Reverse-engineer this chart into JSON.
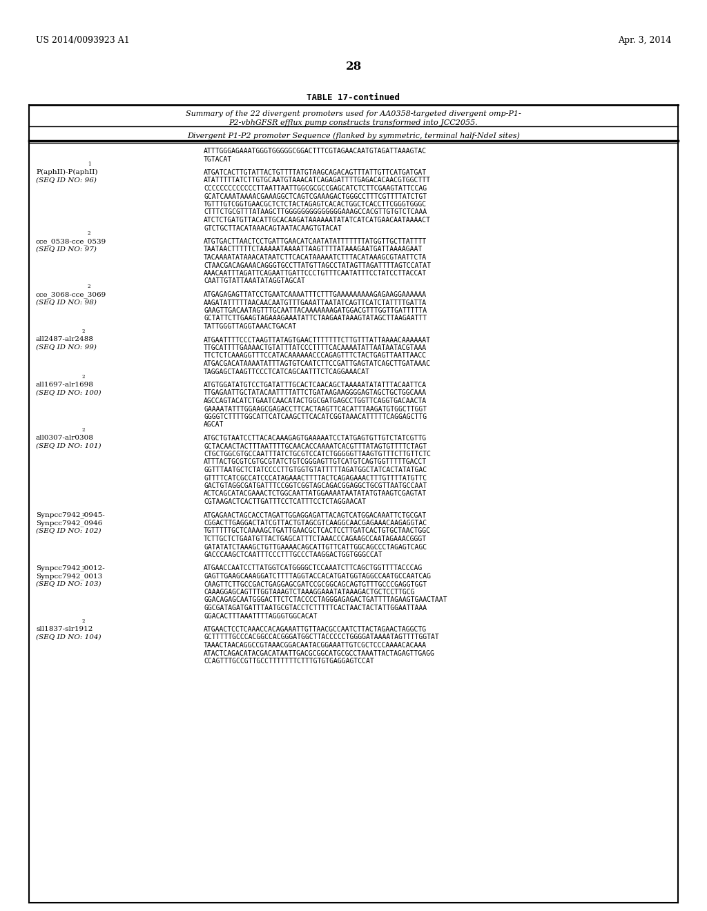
{
  "background_color": "#ffffff",
  "header_left": "US 2014/0093923 A1",
  "header_right": "Apr. 3, 2014",
  "page_number": "28",
  "table_title": "TABLE 17-continued",
  "table_caption_line1": "Summary of the 22 divergent promoters used for AA0358-targeted divergent omp-P1-",
  "table_caption_line2": "P2-vbhGFSR efflux pump constructs transformed into JCC2055.",
  "col_header": "Divergent P1-P2 promoter Sequence (flanked by symmetric, terminal half-NdeI sites)",
  "entry0_seq": [
    "ATTTGGGAGAAATGGGTGGGGGCGGACTTTCGTAGAACAATGTAGATTAAAGTAC",
    "TGTACAT"
  ],
  "entries": [
    {
      "label_line1": "P(aphII)-P(aphII)",
      "label_super": "1",
      "label_line2": "(SEQ ID NO: 96)",
      "seq": [
        "ATGATCACTTGTATTACTGTTTTATGTAAGCAGACAGTTTATTGTTCATGATGAT",
        "ATATTTTTATCTTGTGCAATGTAAACATCAGAGATTTTGAGACACAACGTGGCTTT",
        "CCCCCCCCCCCCCTTAATTAATTGGCGCGCCGAGCATCTCTTCGAAGTATTCCAG",
        "GCATCAAATAAAACGAAAGGCTCAGTCGAAAGACTGGGCCTTTCGTTTTATCTGT",
        "TGTTTGTCGGTGAACGCTCTCTACTAGAGTCACACTGGCTCACCTTCGGGTGGGC",
        "CTTTCTGCGTTTATAAGCTTGGGGGGGGGGGGGGAAAGCCACGTTGTGTCTCAAA",
        "ATCTCTGATGTTACATTGCACAAGATAAAAAATATATCATCATGAACAATAAAACT",
        "GTCTGCTTACATAAACAGTAATACAAGTGTACAT"
      ]
    },
    {
      "label_line1": "cce_0538-cce_0539",
      "label_super": "2",
      "label_line2": "(SEQ ID NO: 97)",
      "seq": [
        "ATGTGACTTAACTCCTGATTGAACATCAATATATTTTTTTATGGTTGCTTATTTT",
        "TAATAACTTTTTCTAAAAATAAAATTAAGTTTTATAAAGAATGATTAAAAGAAT",
        "TACAAAATATAAACATAATCTTCACATAAAAATCTTTACATAAAGCGTAATTCTA",
        "CTAACGACAGAAACAGGGTGCCTTATGTTAGCCTATAGTTAGATTTTAGTCCATAT",
        "AAACAATTTAGATTCAGAATTGATTCCCTGTTTCAATATTTCCTATCCTTACCAT",
        "CAATTGTATTAAATATAGGTAGCAT"
      ]
    },
    {
      "label_line1": "cce_3068-cce_3069",
      "label_super": "2",
      "label_line2": "(SEQ ID NO: 98)",
      "seq": [
        "ATGAGAGAGTTATCCTGAATCAAAATTTCTTTGAAAAAAAAAGAGAAGGAAAAAA",
        "AAGATATTTTTAACAACAATGTTTGAAATTAATATCAGTTCATCTATTTTGATTA",
        "GAAGTTGACAATAGTTTGCAATTACAAAAAAAGATGGACGTTTGGTTGATTTTTA",
        "GCTATTCTTGAAGTAGAAAGAAATATTCTAAGAATAAAGTATAGCTTAAGAATTT",
        "TATTGGGTTAGGTAAACTGACAT"
      ]
    },
    {
      "label_line1": "all2487-alr2488",
      "label_super": "2",
      "label_line2": "(SEQ ID NO: 99)",
      "seq": [
        "ATGAATTTTCCCTAAGTTATAGTGAACTTTTTTTCTTGTTTATTAAAACAAAAAAT",
        "TTGCATTTTGAAAACTGTATTTATCCCTTTTCACAAAATATTAATAATACGTAAA",
        "TTCTCTCAAAGGTTTCCATACAAAAAACCCAGAGTTTCTACTGAGTTAATTAACC",
        "ATGACGACATAAAATATTTAGTGTCAATCTTCCGATTGAGTATCAGCTTGATAAAC",
        "TAGGAGCTAAGTTCCCTCATCAGCAATTTCTCAGGAAACAT"
      ]
    },
    {
      "label_line1": "all1697-alr1698",
      "label_super": "2",
      "label_line2": "(SEQ ID NO: 100)",
      "seq": [
        "ATGTGGATATGTCCTGATATTTGCACTCAACAGCTAAAAATATATTTACAATTCA",
        "TTGAGAATTGCTATACAATTTTATTCTGATAAGAAGGGGAGTAGCTGCTGGCAAA",
        "AGCCAGTACATCTGAATCAACATACTGGCGATGAGCCTGGTTCAGGTGACAACTA",
        "GAAAATATTTGGAAGCGAGACCTTCACTAAGTTCACATTTAAGATGTGGCTTGGT",
        "GGGGTCTTTTGGCATTCATCAAGCTTCACATCGGTAAACATTTTTCAGGAGCTTG",
        "AGCAT"
      ]
    },
    {
      "label_line1": "all0307-alr0308",
      "label_super": "2",
      "label_line2": "(SEQ ID NO: 101)",
      "seq": [
        "ATGCTGTAATCCTTACACAAAGAGTGAAAAATCCTATGAGTGTTGTCTATCGTTG",
        "GCTACAACTACTTTAATTTTGCAACACCAAAATCACGTTTATAGTGTTTTCTAGT",
        "CTGCTGGCGTGCCAATTTATCTGCGTCCATCTGGGGGTTAAGTGTTTCTTGTTCTC",
        "ATTTACTGCGTCGTGCGTATCTGTCGGGAGTTGTCATGTCAGTGGTTTTTGACCT",
        "GGTTTAATGCTCTATCCCCTTGTGGTGTATTTTTAGATGGCTATCACTATATGAC",
        "GTTTTCATCGCCATCCCATAGAAACTTTTACTCAGAGAAACTTTGTTTTATGTTC",
        "GACTGTAGGCGATGATTTCCGGTCGGTAGCAGACGGAGGCTGCGTTAATGCCAAT",
        "ACTCAGCATACGAAACTCTGGCAATTATGGAAAATAATATATGTAAGTCGAGTAT",
        "CGTAAGACTCACTTGATTTCCTCATTTCCTCTAGGAACAT"
      ]
    },
    {
      "label_line1": "Synpcc7942_0945-",
      "label_line1b": "Synpcc7942_0946",
      "label_super": "2",
      "label_line2": "(SEQ ID NO: 102)",
      "seq": [
        "ATGAGAACTAGCACCTAGATTGGAGGAGATTACAGTCATGGACAAATTCTGCGAT",
        "CGGACTTGAGGACTATCGTTACTGTAGCGTCAAGGCAACGAGAAACAAGAGGTAC",
        "TGTTTTTGCTCAAAAGCTGATTGAACGCTCACTCCTTGATCACTGTGCTAACTGGC",
        "TCTTGCTCTGAATGTTACTGAGCATTTCTAAACCCAGAAGCCAATAGAAACGGGT",
        "GATATATCTAAAGCTGTTGAAAACAGCATTGTTCATTGGCAGCCCTAGAGTCAGC",
        "GACCCAAGCTCAATTTCCCTTTGCCCTAAGGACTGGTGGGCCAT"
      ]
    },
    {
      "label_line1": "Synpcc7942_0012-",
      "label_line1b": "Synpcc7942_0013",
      "label_super": "2",
      "label_line2": "(SEQ ID NO: 103)",
      "seq": [
        "ATGAACCAATCCTTATGGTCATGGGGCTCCAAATCTTCAGCTGGTTTTACCCAG",
        "GAGTTGAAGCAAAGGATCTTTTAGGTACCACATGATGGTAGGCCAATGCCAATCAG",
        "CAAGTTCTTGCCGACTGAGGAGCGATCCGCGGCAGCAGTGTTTGCCCGAGGTGGT",
        "CAAAGGAGCAGTTTGGTAAAGTCTAAAGGAAATATAAAGACTGCTCCTTGCG",
        "GGACAGAGCAATGGGACTTCTCTACCCCTAGGGAGAGACTGATTTTAGAAGTGAACTAAT",
        "GGCGATAGATGATTTAATGCGTACCTCTTTTTCACTAACTACTATTGGAATTAAA",
        "GGACACTTTAAATTTTAGGGTGGCACAT"
      ]
    },
    {
      "label_line1": "sll1837-slr1912",
      "label_super": "2",
      "label_line2": "(SEQ ID NO: 104)",
      "seq": [
        "ATGAACTCCTCAAACCACAGAAATTGTTAACGCCAATCTTACTAGAACTAGGCTG",
        "GCTTTTTGCCCACGGCCACGGGATGGCTTACCCCCTGGGGATAAAATAGTTTTGGTAT",
        "TAAACTAACAGGCCGTAAACGGACAATACGGAAATTGTCGCTCCCAAAACACAAA",
        "ATACTCAGACATACGACATAATTGACGCGGCATGCGCCTAAATTACTAGAGTTGAGG",
        "CCAGTTTGCCGTTGCCTTTTTTTCTTTGTGTGAGGAGTCCAT"
      ]
    }
  ]
}
